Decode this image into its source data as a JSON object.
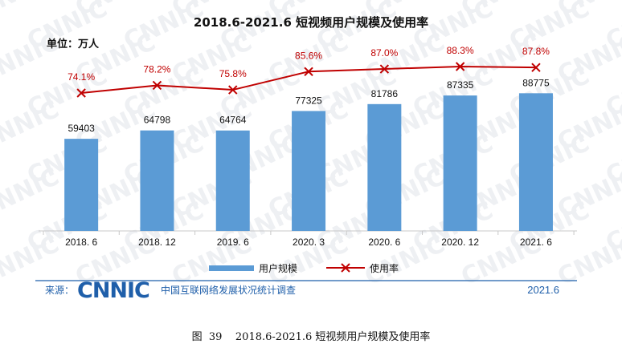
{
  "chart_data": {
    "type": "bar",
    "title": "2018.6-2021.6 短视频用户规模及使用率",
    "unit": "单位：万人",
    "categories": [
      "2018. 6",
      "2018. 12",
      "2019. 6",
      "2020. 3",
      "2020. 6",
      "2020. 12",
      "2021. 6"
    ],
    "series": [
      {
        "name": "用户规模",
        "type": "bar",
        "color": "#5b9bd5",
        "values": [
          59403,
          64798,
          64764,
          77325,
          81786,
          87335,
          88775
        ]
      },
      {
        "name": "使用率",
        "type": "line",
        "color": "#c00000",
        "values": [
          74.1,
          78.2,
          75.8,
          85.6,
          87.0,
          88.3,
          87.8
        ]
      }
    ],
    "bar_labels": [
      "59403",
      "64798",
      "64764",
      "77325",
      "81786",
      "87335",
      "88775"
    ],
    "line_labels": [
      "74.1%",
      "78.2%",
      "75.8%",
      "85.6%",
      "87.0%",
      "88.3%",
      "87.8%"
    ],
    "ylim": [
      0,
      100000
    ],
    "line_ylim": [
      0,
      100
    ],
    "grid": false,
    "legend_position": "bottom"
  },
  "footer": {
    "source_label": "来源：",
    "logo_text": "CNNIC",
    "org_name": "中国互联网络发展状况统计调查",
    "date": "2021.6"
  },
  "caption": "图  39    2018.6-2021.6 短视频用户规模及使用率",
  "colors": {
    "bar": "#5b9bd5",
    "line": "#c00000",
    "brand": "#1f5faa"
  }
}
